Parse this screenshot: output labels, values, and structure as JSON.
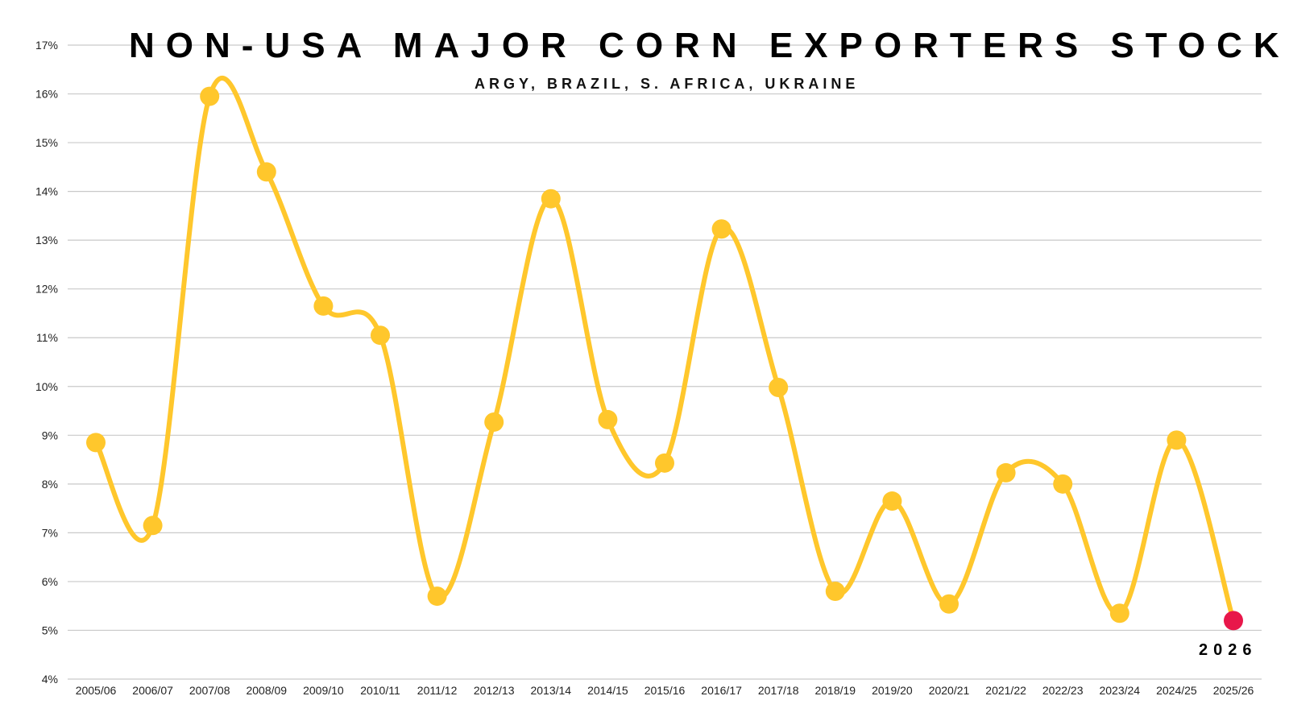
{
  "chart_data": {
    "type": "line",
    "title": "NON-USA MAJOR CORN EXPORTERS STOCKS TO USE",
    "subtitle": "ARGY, BRAZIL, S. AFRICA, UKRAINE",
    "xlabel": "",
    "ylabel": "",
    "ylim": [
      4,
      17
    ],
    "yticks": [
      "4%",
      "5%",
      "6%",
      "7%",
      "8%",
      "9%",
      "10%",
      "11%",
      "12%",
      "13%",
      "14%",
      "15%",
      "16%",
      "17%"
    ],
    "grid": true,
    "categories": [
      "2005/06",
      "2006/07",
      "2007/08",
      "2008/09",
      "2009/10",
      "2010/11",
      "2011/12",
      "2012/13",
      "2013/14",
      "2014/15",
      "2015/16",
      "2016/17",
      "2017/18",
      "2018/19",
      "2019/20",
      "2020/21",
      "2021/22",
      "2022/23",
      "2023/24",
      "2024/25",
      "2025/26"
    ],
    "series": [
      {
        "name": "Stocks to Use",
        "color": "#FFC72C",
        "highlight_color": "#E8174A",
        "values": [
          8.85,
          7.15,
          15.95,
          14.4,
          11.65,
          11.05,
          5.7,
          9.27,
          13.85,
          9.32,
          8.43,
          13.23,
          9.98,
          5.8,
          7.65,
          5.54,
          8.23,
          8.0,
          5.35,
          8.9,
          5.2
        ]
      }
    ],
    "annotation": {
      "text": "2026",
      "category": "2025/26"
    }
  }
}
